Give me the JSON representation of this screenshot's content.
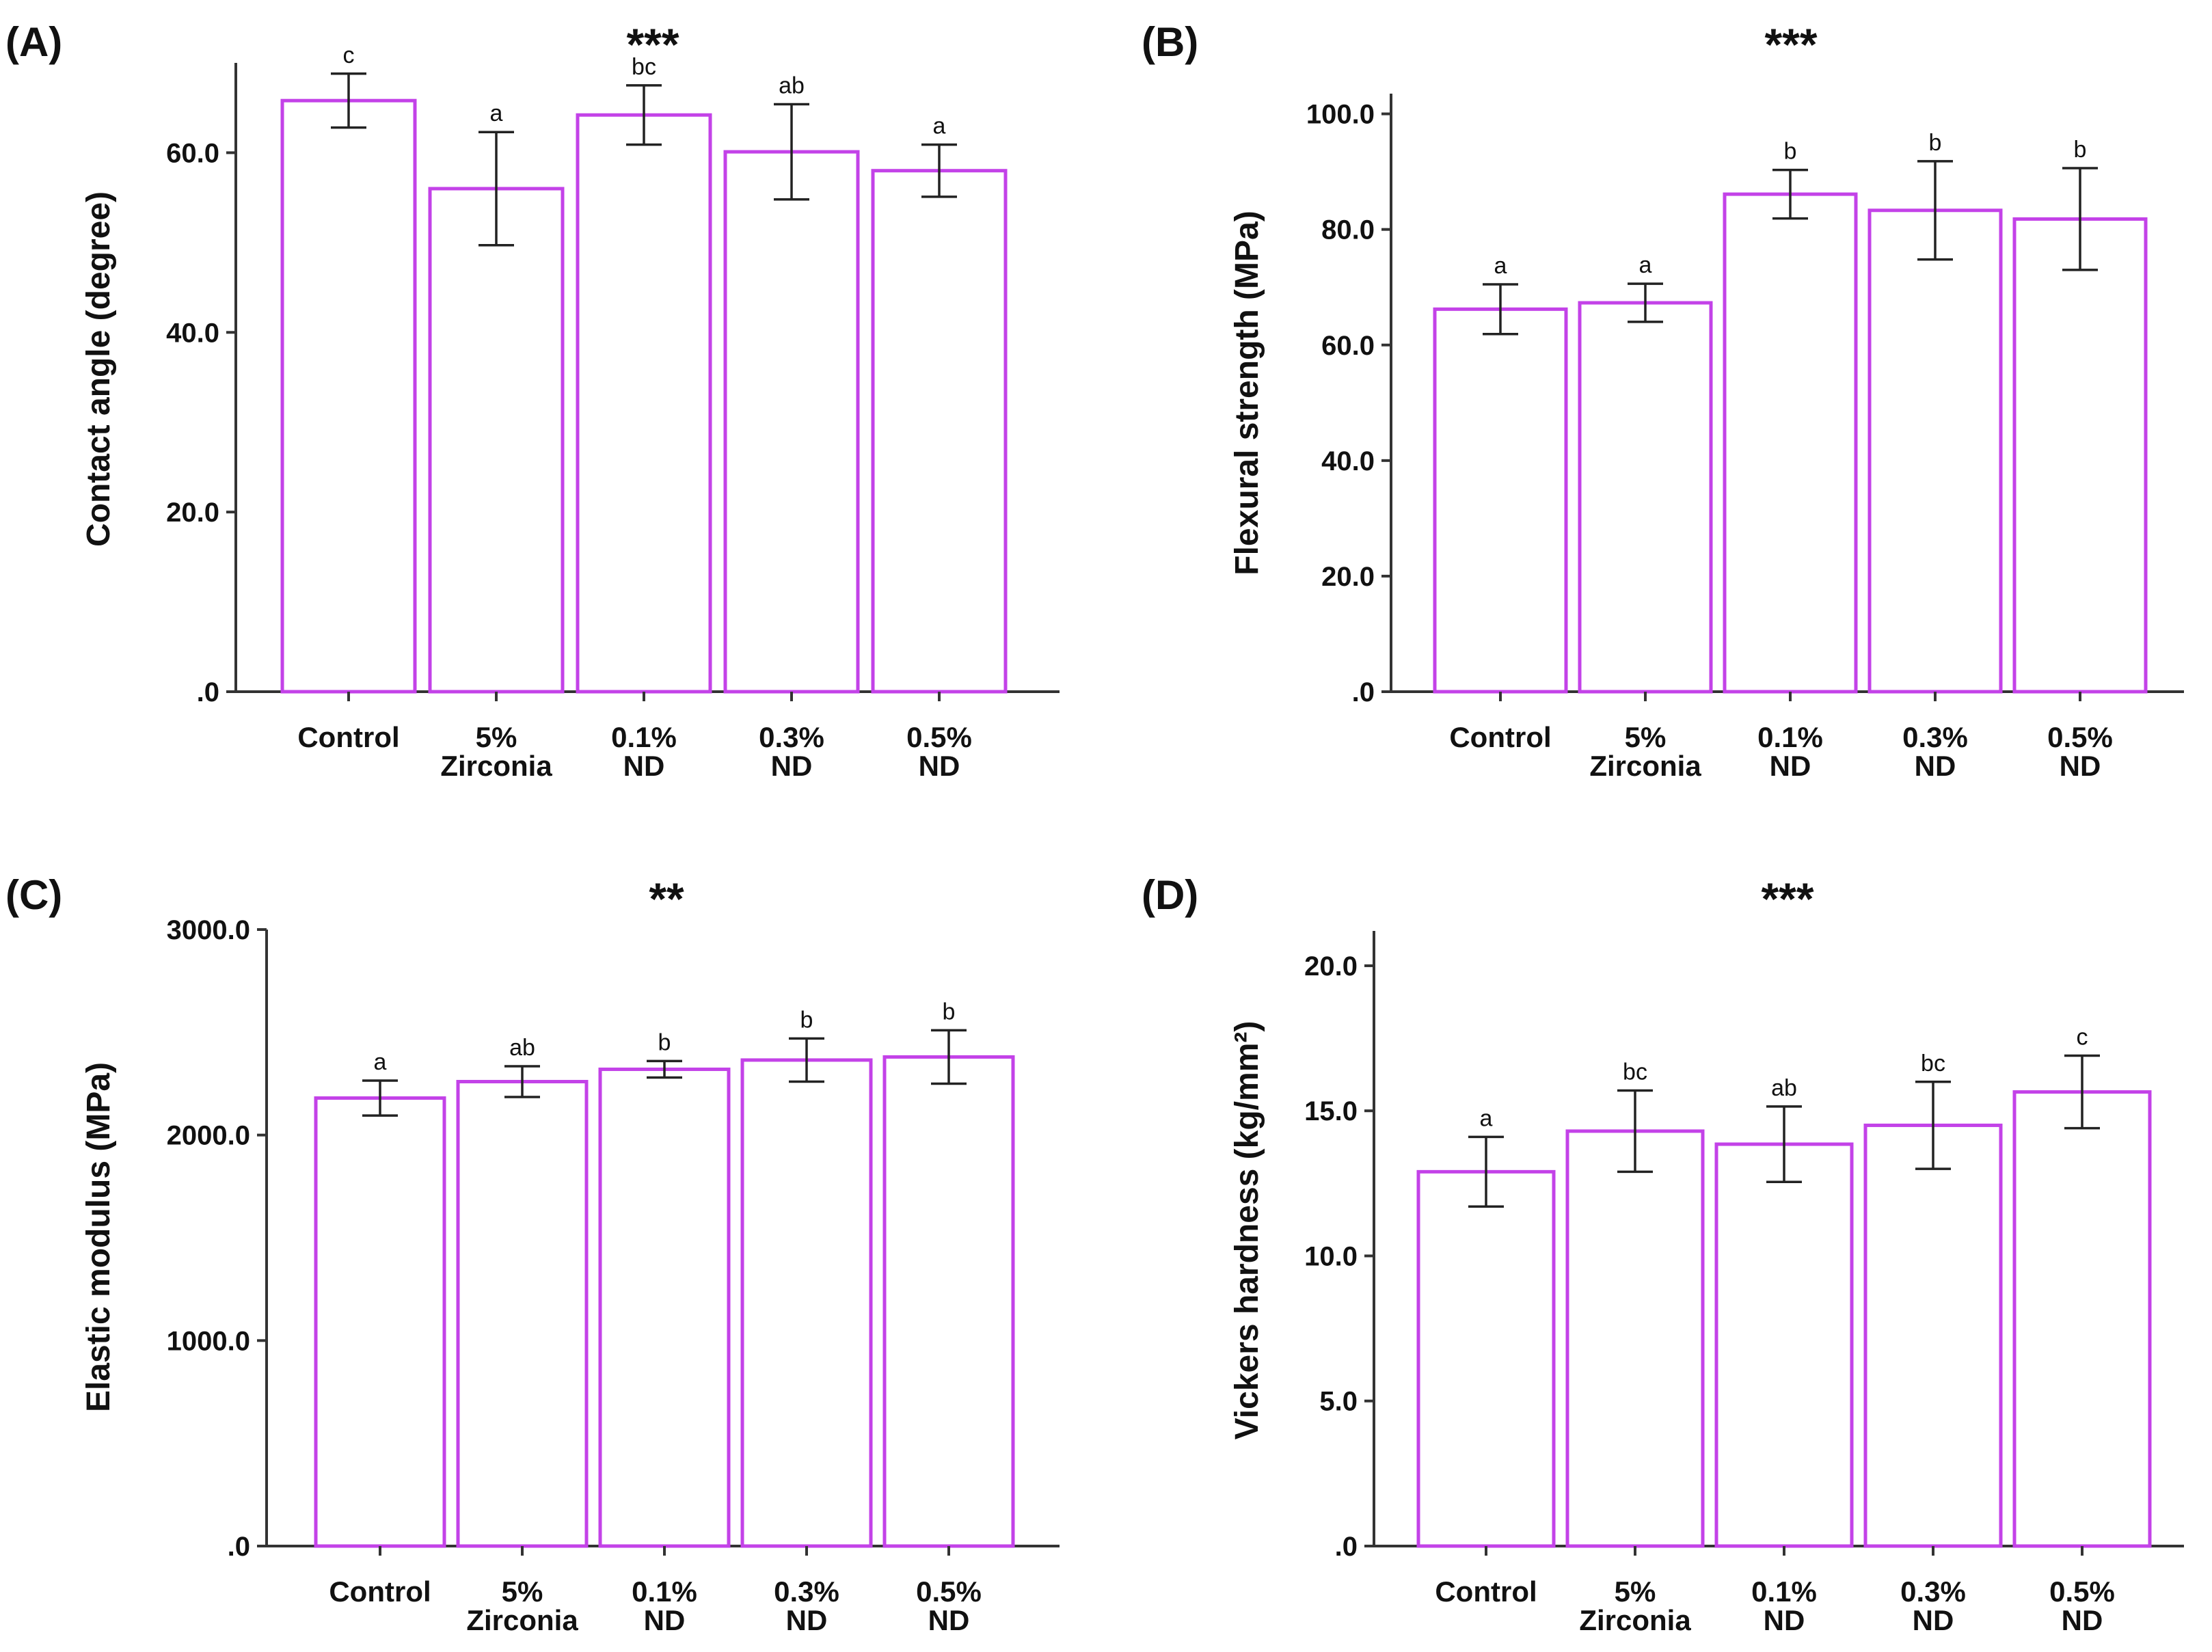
{
  "figure": {
    "bar_color": "#c342e8",
    "axis_color": "#333333",
    "error_bar_color": "#222222"
  },
  "chart_data": [
    {
      "type": "bar",
      "panel": "(A)",
      "significance": "***",
      "ylabel": "Contact angle (degree)",
      "ylim": [
        0,
        70
      ],
      "yticks": [
        0,
        20,
        40,
        60
      ],
      "ytick_labels": [
        ".0",
        "20.0",
        "40.0",
        "60.0"
      ],
      "categories": [
        [
          "Control"
        ],
        [
          "5%",
          "Zirconia"
        ],
        [
          "0.1%",
          "ND"
        ],
        [
          "0.3%",
          "ND"
        ],
        [
          "0.5%",
          "ND"
        ]
      ],
      "values": [
        65.8,
        56.0,
        64.2,
        60.1,
        58.0
      ],
      "errors": [
        3.0,
        6.3,
        3.3,
        5.3,
        2.9
      ],
      "letters": [
        "c",
        "a",
        "bc",
        "ab",
        "a"
      ]
    },
    {
      "type": "bar",
      "panel": "(B)",
      "significance": "***",
      "ylabel": "Flexural strength (MPa)",
      "ylim": [
        0,
        100
      ],
      "yticks": [
        0,
        20,
        40,
        60,
        80,
        100
      ],
      "ytick_labels": [
        ".0",
        "20.0",
        "40.0",
        "60.0",
        "80.0",
        "100.0"
      ],
      "categories": [
        [
          "Control"
        ],
        [
          "5%",
          "Zirconia"
        ],
        [
          "0.1%",
          "ND"
        ],
        [
          "0.3%",
          "ND"
        ],
        [
          "0.5%",
          "ND"
        ]
      ],
      "values": [
        66.2,
        67.3,
        86.1,
        83.3,
        81.8
      ],
      "errors": [
        4.3,
        3.3,
        4.2,
        8.5,
        8.8
      ],
      "letters": [
        "a",
        "a",
        "b",
        "b",
        "b"
      ]
    },
    {
      "type": "bar",
      "panel": "(C)",
      "significance": "**",
      "ylabel": "Elastic modulus (MPa)",
      "ylim": [
        0,
        3000
      ],
      "yticks": [
        0,
        1000,
        2000,
        3000
      ],
      "ytick_labels": [
        ".0",
        "1000.0",
        "2000.0",
        "3000.0"
      ],
      "categories": [
        [
          "Control"
        ],
        [
          "5%",
          "Zirconia"
        ],
        [
          "0.1%",
          "ND"
        ],
        [
          "0.3%",
          "ND"
        ],
        [
          "0.5%",
          "ND"
        ]
      ],
      "values": [
        2180,
        2260,
        2320,
        2365,
        2380
      ],
      "errors": [
        85,
        75,
        40,
        105,
        130
      ],
      "letters": [
        "a",
        "ab",
        "b",
        "b",
        "b"
      ]
    },
    {
      "type": "bar",
      "panel": "(D)",
      "significance": "***",
      "ylabel": "Vickers hardness (kg/mm²)",
      "ylim": [
        0,
        20
      ],
      "yticks": [
        0,
        5,
        10,
        15,
        20
      ],
      "ytick_labels": [
        ".0",
        "5.0",
        "10.0",
        "15.0",
        "20.0"
      ],
      "categories": [
        [
          "Control"
        ],
        [
          "5%",
          "Zirconia"
        ],
        [
          "0.1%",
          "ND"
        ],
        [
          "0.3%",
          "ND"
        ],
        [
          "0.5%",
          "ND"
        ]
      ],
      "values": [
        12.9,
        14.3,
        13.85,
        14.5,
        15.65
      ],
      "errors": [
        1.2,
        1.4,
        1.3,
        1.5,
        1.25
      ],
      "letters": [
        "a",
        "bc",
        "ab",
        "bc",
        "c"
      ]
    }
  ]
}
